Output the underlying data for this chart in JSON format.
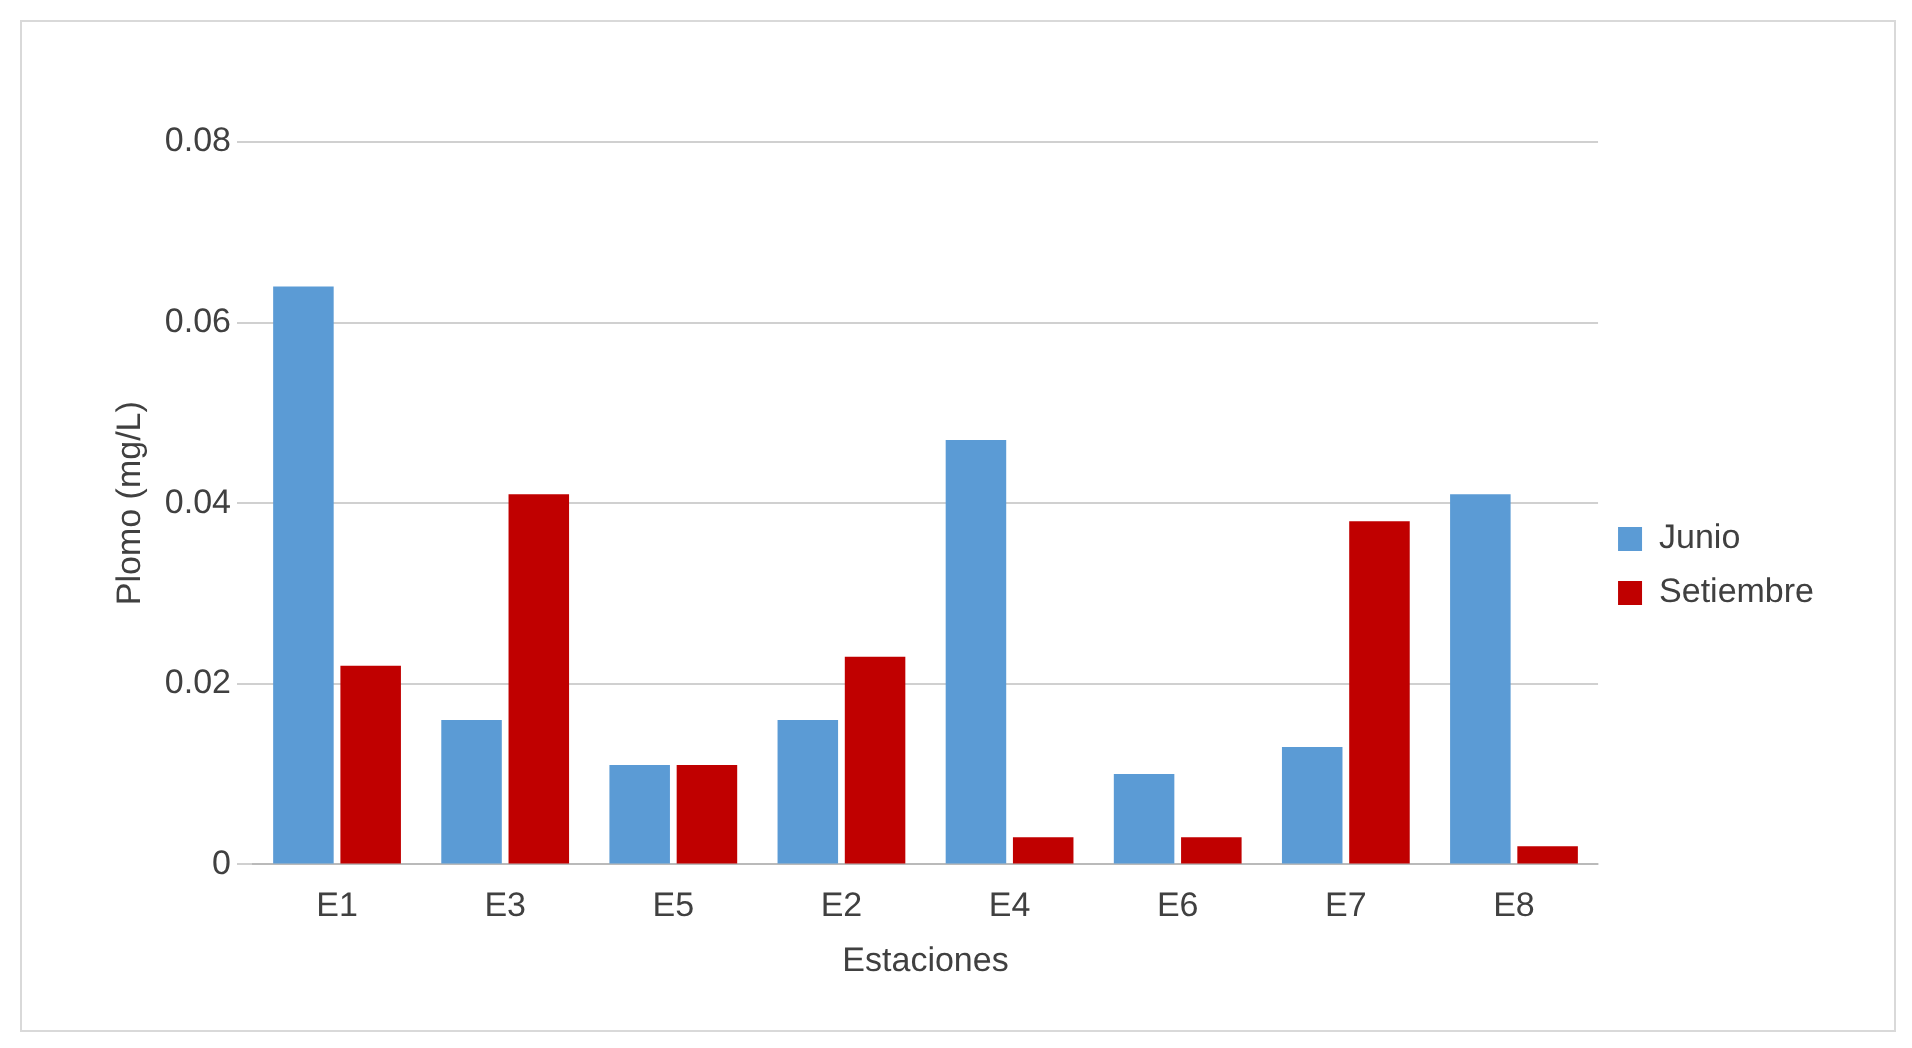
{
  "chart_data": {
    "type": "bar",
    "xlabel": "Estaciones",
    "ylabel": "Plomo (mg/L)",
    "categories": [
      "E1",
      "E3",
      "E5",
      "E2",
      "E4",
      "E6",
      "E7",
      "E8"
    ],
    "series": [
      {
        "name": "Junio",
        "color": "#5b9bd5",
        "values": [
          0.064,
          0.016,
          0.011,
          0.016,
          0.047,
          0.01,
          0.013,
          0.041
        ]
      },
      {
        "name": "Setiembre",
        "color": "#c00000",
        "values": [
          0.022,
          0.041,
          0.011,
          0.023,
          0.003,
          0.003,
          0.038,
          0.002
        ]
      }
    ],
    "ylim": [
      0,
      0.08
    ],
    "yticks": [
      0,
      0.02,
      0.04,
      0.06,
      0.08
    ],
    "grid": "y",
    "legend": "right"
  }
}
